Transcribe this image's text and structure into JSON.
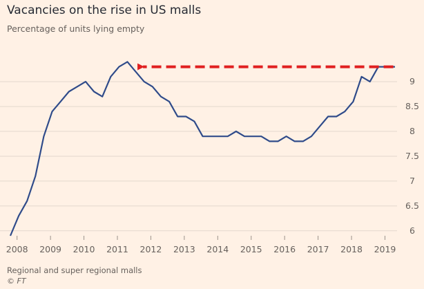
{
  "chart_data": {
    "type": "line",
    "title": "Vacancies on the rise in US malls",
    "subtitle": "Percentage of units lying empty",
    "source": "Regional and super regional malls",
    "credit": "© FT",
    "xlim": [
      2007.8,
      2019.3
    ],
    "ylim": [
      5.9,
      9.6
    ],
    "x_ticks": [
      2008,
      2009,
      2010,
      2011,
      2012,
      2013,
      2014,
      2015,
      2016,
      2017,
      2018,
      2019
    ],
    "y_ticks": [
      6,
      6.5,
      7,
      7.5,
      8,
      8.5,
      9
    ],
    "grid": "horizontal",
    "line_color": "#2f4b8a",
    "grid_color": "#e3d8cd",
    "annotation_color": "#e02020",
    "annotation": {
      "type": "dashed-arrow",
      "from": [
        2019.25,
        9.3
      ],
      "to": [
        2011.6,
        9.3
      ]
    },
    "series": [
      {
        "x": [
          2007.8,
          2008.05,
          2008.3,
          2008.55,
          2008.8,
          2009.05,
          2009.3,
          2009.55,
          2009.8,
          2010.05,
          2010.3,
          2010.55,
          2010.8,
          2011.05,
          2011.3,
          2011.55,
          2011.8,
          2012.05,
          2012.3,
          2012.55,
          2012.8,
          2013.05,
          2013.3,
          2013.55,
          2013.8,
          2014.05,
          2014.3,
          2014.55,
          2014.8,
          2015.05,
          2015.3,
          2015.55,
          2015.8,
          2016.05,
          2016.3,
          2016.55,
          2016.8,
          2017.05,
          2017.3,
          2017.55,
          2017.8,
          2018.05,
          2018.3,
          2018.55,
          2018.8,
          2019.05,
          2019.3
        ],
        "values": [
          5.9,
          6.3,
          6.6,
          7.1,
          7.9,
          8.4,
          8.6,
          8.8,
          8.9,
          9.0,
          8.8,
          8.7,
          9.1,
          9.3,
          9.4,
          9.2,
          9.0,
          8.9,
          8.7,
          8.6,
          8.3,
          8.3,
          8.2,
          7.9,
          7.9,
          7.9,
          7.9,
          8.0,
          7.9,
          7.9,
          7.9,
          7.8,
          7.8,
          7.9,
          7.8,
          7.8,
          7.9,
          8.1,
          8.3,
          8.3,
          8.4,
          8.6,
          9.1,
          9.0,
          9.3,
          9.3,
          9.3
        ]
      }
    ]
  }
}
